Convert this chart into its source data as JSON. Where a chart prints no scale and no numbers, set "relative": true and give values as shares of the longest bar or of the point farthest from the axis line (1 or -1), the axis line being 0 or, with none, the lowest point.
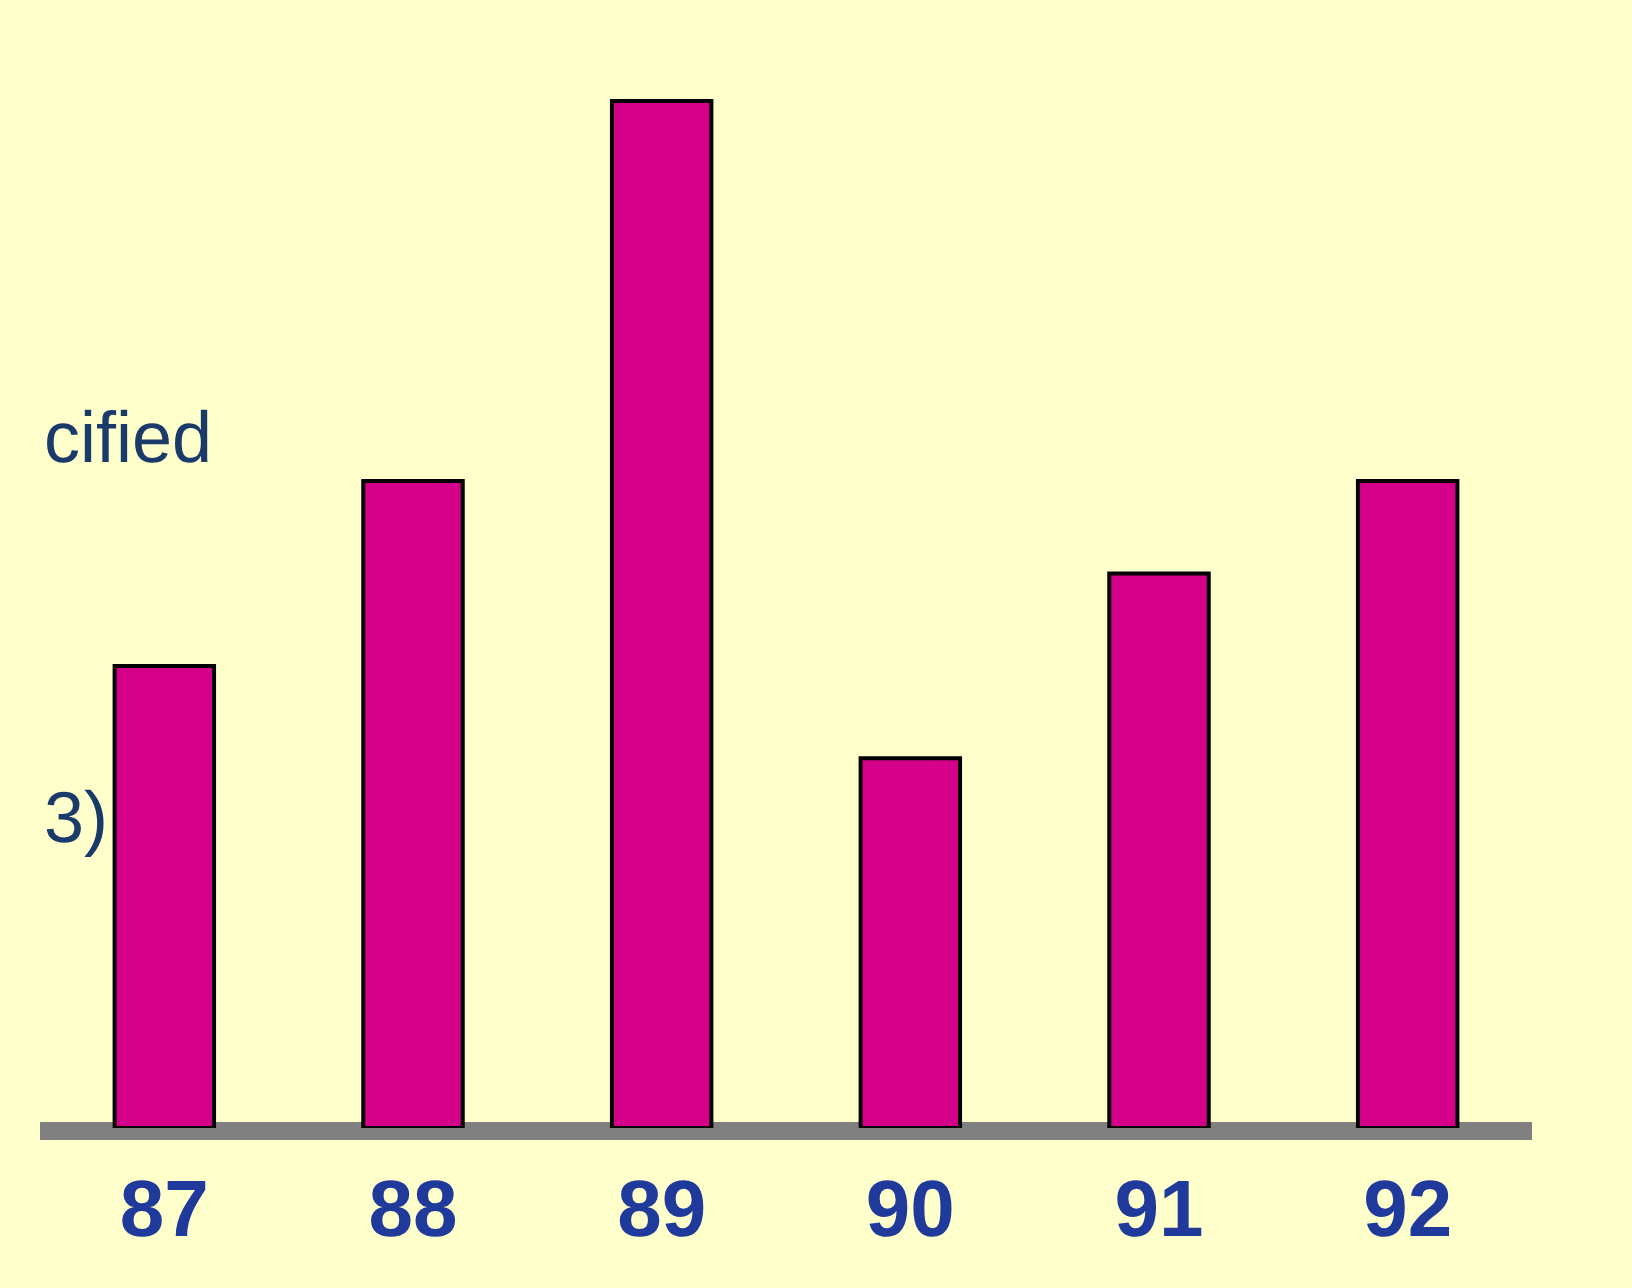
{
  "chart_data": {
    "type": "bar",
    "relative": true,
    "categories": [
      "87",
      "88",
      "89",
      "90",
      "91",
      "92"
    ],
    "values": [
      0.45,
      0.63,
      1,
      0.36,
      0.54,
      0.63
    ],
    "color": "#d4008a",
    "annotations": [
      "cified",
      "3)"
    ]
  }
}
